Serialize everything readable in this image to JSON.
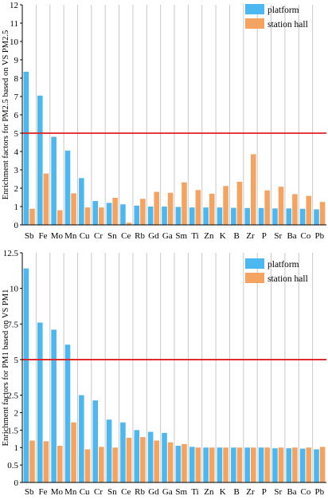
{
  "colors": {
    "platform": "#4db8f0",
    "station_hall": "#f4a460",
    "threshold": "#e02020",
    "grid": "#c8c8c8",
    "axis": "#000000"
  },
  "chart_data": [
    {
      "type": "bar",
      "ylabel": "Enrichment factors for PM2.5 based on VS PM2.5",
      "xlabel": "",
      "ylim": [
        0,
        12
      ],
      "yticks": [
        0,
        1,
        2,
        3,
        4,
        5,
        6,
        7,
        8,
        9,
        10,
        11,
        12
      ],
      "threshold": 5,
      "grid": "vertical",
      "legend_position": "top-right",
      "categories": [
        "Sb",
        "Fe",
        "Mo",
        "Mn",
        "Cu",
        "Cr",
        "Sn",
        "Ce",
        "Rb",
        "Gd",
        "Ga",
        "Sm",
        "Ti",
        "Zn",
        "K",
        "B",
        "Zr",
        "P",
        "Sr",
        "Ba",
        "Co",
        "Pb"
      ],
      "series": [
        {
          "name": "platform",
          "color": "#4db8f0",
          "values": [
            8.35,
            7.05,
            4.8,
            4.05,
            2.55,
            1.3,
            1.2,
            1.12,
            1.05,
            1.0,
            1.0,
            0.98,
            0.95,
            0.95,
            0.95,
            0.93,
            0.92,
            0.92,
            0.9,
            0.9,
            0.88,
            0.85
          ]
        },
        {
          "name": "station hall",
          "color": "#f4a460",
          "values": [
            0.88,
            2.8,
            0.8,
            1.72,
            0.95,
            0.95,
            1.48,
            0.12,
            1.42,
            1.8,
            1.75,
            2.32,
            1.9,
            1.7,
            2.12,
            2.35,
            3.85,
            1.88,
            2.08,
            1.68,
            1.58,
            1.25
          ]
        }
      ]
    },
    {
      "type": "bar",
      "ylabel": "Enrichment factors for PM1 based on VS PM1",
      "xlabel": "",
      "ylim": [
        0,
        12
      ],
      "yticks": [
        0,
        0.5,
        1,
        1.5,
        2,
        2.5,
        5,
        7.5,
        10,
        12.5
      ],
      "threshold": 5,
      "grid": "vertical",
      "legend_position": "top-right",
      "categories": [
        "Sb",
        "Fe",
        "Mo",
        "Mn",
        "Cu",
        "Cr",
        "Sn",
        "Ce",
        "Rb",
        "Gd",
        "Ga",
        "Sm",
        "Ti",
        "Zn",
        "K",
        "B",
        "Zr",
        "P",
        "Sr",
        "Ba",
        "Co",
        "Pb"
      ],
      "series": [
        {
          "name": "platform",
          "color": "#4db8f0",
          "values": [
            11.4,
            7.6,
            7.1,
            6.05,
            2.5,
            2.35,
            1.8,
            1.72,
            1.5,
            1.45,
            1.42,
            1.05,
            1.02,
            1.0,
            1.0,
            1.0,
            1.0,
            1.0,
            0.98,
            0.98,
            0.97,
            0.95
          ]
        },
        {
          "name": "station hall",
          "color": "#f4a460",
          "values": [
            1.2,
            1.18,
            1.05,
            1.72,
            0.95,
            1.02,
            1.0,
            1.28,
            1.3,
            1.2,
            1.15,
            1.1,
            1.0,
            1.0,
            1.0,
            1.0,
            1.0,
            1.0,
            1.0,
            1.0,
            1.0,
            1.02
          ]
        }
      ]
    }
  ]
}
